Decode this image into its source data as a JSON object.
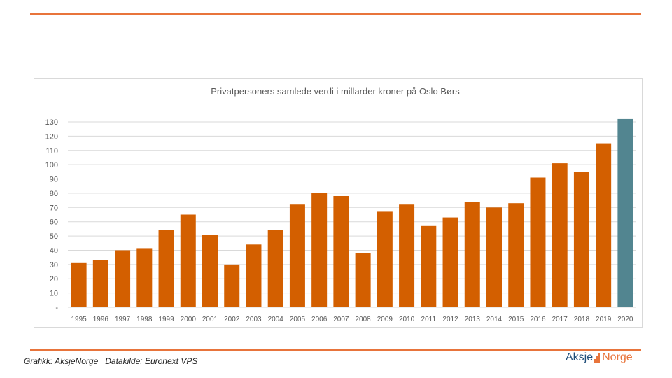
{
  "footer": {
    "credit": "Grafikk: AksjeNorge   Datakilde: Euronext VPS"
  },
  "logo": {
    "part1": "Aksje",
    "part2": "Norge"
  },
  "colors": {
    "bar": "#d35f00",
    "highlight_bar": "#528590",
    "grid": "#d9d9d9",
    "rule": "#e8743b"
  },
  "chart_data": {
    "type": "bar",
    "title": "Privatpersoners samlede verdi i millarder kroner på Oslo Børs",
    "xlabel": "",
    "ylabel": "",
    "ylim": [
      0,
      130
    ],
    "yticks": [
      0,
      10,
      20,
      30,
      40,
      50,
      60,
      70,
      80,
      90,
      100,
      110,
      120,
      130
    ],
    "ytick_labels": [
      "-",
      "10",
      "20",
      "30",
      "40",
      "50",
      "60",
      "70",
      "80",
      "90",
      "100",
      "110",
      "120",
      "130"
    ],
    "grid": true,
    "legend": "none",
    "categories": [
      "1995",
      "1996",
      "1997",
      "1998",
      "1999",
      "2000",
      "2001",
      "2002",
      "2003",
      "2004",
      "2005",
      "2006",
      "2007",
      "2008",
      "2009",
      "2010",
      "2011",
      "2012",
      "2013",
      "2014",
      "2015",
      "2016",
      "2017",
      "2018",
      "2019",
      "2020"
    ],
    "values": [
      31,
      33,
      40,
      41,
      54,
      65,
      51,
      30,
      44,
      54,
      72,
      80,
      78,
      38,
      67,
      72,
      57,
      63,
      74,
      70,
      73,
      91,
      101,
      95,
      115,
      132
    ],
    "highlight": "2020"
  }
}
